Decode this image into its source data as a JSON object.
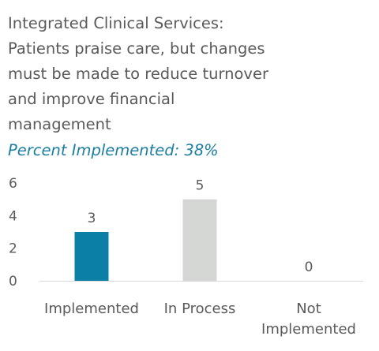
{
  "title_lines": [
    "Integrated Clinical Services:",
    "Patients praise care, but changes",
    "must be made to reduce turnover",
    "and improve financial",
    "management"
  ],
  "subtitle": "Percent Implemented: 38%",
  "chart_data": {
    "type": "bar",
    "categories": [
      [
        "Implemented"
      ],
      [
        "In Process"
      ],
      [
        "Not",
        "Implemented"
      ]
    ],
    "values": [
      3,
      5,
      0
    ],
    "data_labels": [
      "3",
      "5",
      "0"
    ],
    "bar_colors": [
      "#0b7fa6",
      "#d4d6d4",
      "#d4d6d4"
    ],
    "ylim": [
      0,
      6
    ],
    "yticks": [
      0,
      2,
      4,
      6
    ],
    "grid": false,
    "legend": "none"
  },
  "colors": {
    "title": "#5a5a5a",
    "subtitle": "#1b7fa2",
    "axis_text": "#5a5a5a",
    "baseline": "#d9d9d9"
  }
}
